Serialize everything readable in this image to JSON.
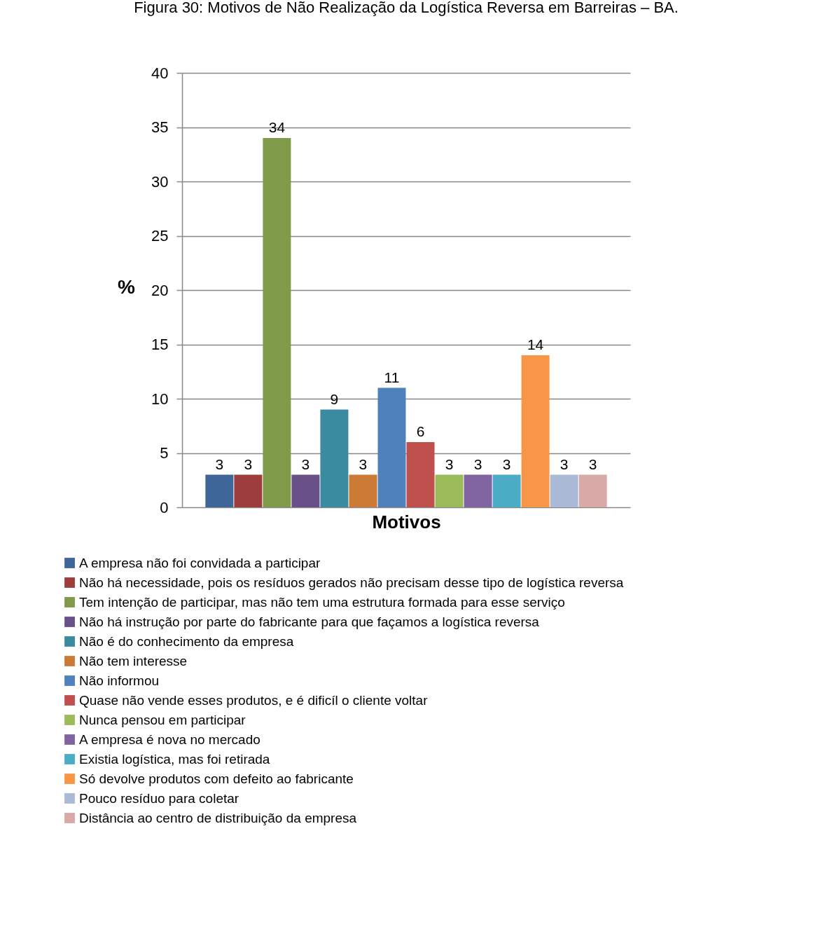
{
  "chart_data": {
    "type": "bar",
    "title": "Figura 30: Motivos de Não Realização da Logística Reversa em Barreiras – BA.",
    "xlabel": "Motivos",
    "ylabel": "%",
    "categories": [
      null
    ],
    "ylim": [
      0,
      40
    ],
    "yticks": [
      0,
      5,
      10,
      15,
      20,
      25,
      30,
      35,
      40
    ],
    "grid": "y",
    "legend": "bottom",
    "data_labels": true,
    "series": [
      {
        "name": "A empresa não foi convidada a participar",
        "color": "#3f6698",
        "values": [
          3
        ]
      },
      {
        "name": "Não há necessidade, pois os resíduos gerados não precisam desse tipo de logística reversa",
        "color": "#9d3e3c",
        "values": [
          3
        ]
      },
      {
        "name": "Tem intenção de participar, mas não tem uma estrutura formada para esse serviço",
        "color": "#7f9a48",
        "values": [
          34
        ]
      },
      {
        "name": "Não há instrução por parte do fabricante para que façamos a logística reversa",
        "color": "#6a5088",
        "values": [
          3
        ]
      },
      {
        "name": "Não é do conhecimento da empresa",
        "color": "#3a8ba0",
        "values": [
          9
        ]
      },
      {
        "name": "Não tem interesse",
        "color": "#cc7b37",
        "values": [
          3
        ]
      },
      {
        "name": "Não informou",
        "color": "#4f81bd",
        "values": [
          11
        ]
      },
      {
        "name": "Quase não vende esses produtos, e é dificíl o cliente voltar",
        "color": "#c0504d",
        "values": [
          6
        ]
      },
      {
        "name": "Nunca pensou em participar",
        "color": "#9bbb59",
        "values": [
          3
        ]
      },
      {
        "name": "A empresa é nova no mercado",
        "color": "#8064a2",
        "values": [
          3
        ]
      },
      {
        "name": "Existia logística, mas foi retirada",
        "color": "#4bacc6",
        "values": [
          3
        ]
      },
      {
        "name": "Só devolve produtos com defeito ao fabricante",
        "color": "#f79646",
        "values": [
          14
        ]
      },
      {
        "name": "Pouco resíduo para coletar",
        "color": "#aabad7",
        "values": [
          3
        ]
      },
      {
        "name": "Distância ao centro de distribuição da empresa",
        "color": "#d9a9a8",
        "values": [
          3
        ]
      }
    ]
  }
}
